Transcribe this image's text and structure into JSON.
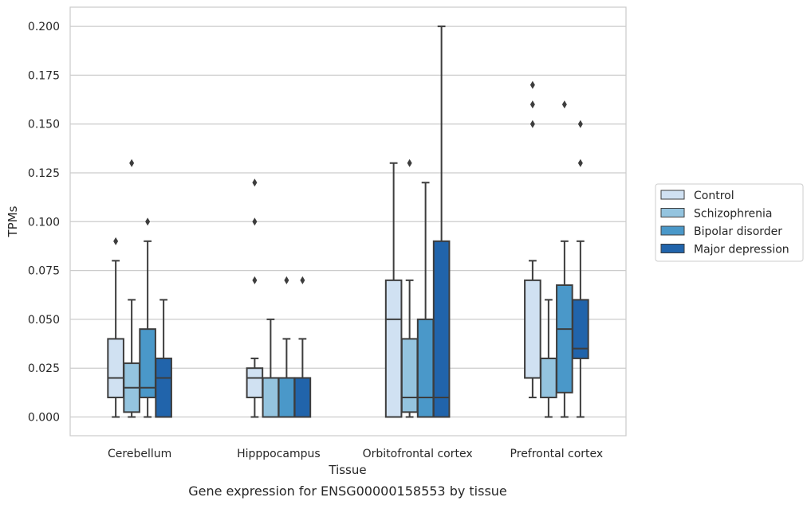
{
  "chart_data": {
    "type": "box",
    "xlabel": "Tissue",
    "ylabel": "TPMs",
    "caption": "Gene expression for ENSG00000158553 by tissue",
    "ylim": [
      -0.01,
      0.21
    ],
    "yticks": [
      "0.000",
      "0.025",
      "0.050",
      "0.075",
      "0.100",
      "0.125",
      "0.150",
      "0.175",
      "0.200"
    ],
    "grid": true,
    "legend_position": "right",
    "categories": [
      "Cerebellum",
      "Hipppocampus",
      "Orbitofrontal cortex",
      "Prefrontal cortex"
    ],
    "series": [
      {
        "name": "Control",
        "color": "#d0e1f2",
        "boxes": [
          {
            "whislo": 0.0,
            "q1": 0.01,
            "med": 0.02,
            "q3": 0.04,
            "whishi": 0.08,
            "fliers": [
              0.09
            ]
          },
          {
            "whislo": 0.0,
            "q1": 0.01,
            "med": 0.02,
            "q3": 0.025,
            "whishi": 0.03,
            "fliers": [
              0.07,
              0.1,
              0.12
            ]
          },
          {
            "whislo": 0.0,
            "q1": 0.0,
            "med": 0.05,
            "q3": 0.07,
            "whishi": 0.13,
            "fliers": []
          },
          {
            "whislo": 0.01,
            "q1": 0.02,
            "med": 0.02,
            "q3": 0.07,
            "whishi": 0.08,
            "fliers": [
              0.15,
              0.16,
              0.17
            ]
          }
        ]
      },
      {
        "name": "Schizophrenia",
        "color": "#94c4df",
        "boxes": [
          {
            "whislo": 0.0,
            "q1": 0.0025,
            "med": 0.015,
            "q3": 0.0275,
            "whishi": 0.06,
            "fliers": [
              0.13
            ]
          },
          {
            "whislo": 0.0,
            "q1": 0.0,
            "med": 0.02,
            "q3": 0.02,
            "whishi": 0.05,
            "fliers": []
          },
          {
            "whislo": 0.0,
            "q1": 0.0025,
            "med": 0.01,
            "q3": 0.04,
            "whishi": 0.07,
            "fliers": [
              0.13
            ]
          },
          {
            "whislo": 0.0,
            "q1": 0.01,
            "med": 0.03,
            "q3": 0.03,
            "whishi": 0.06,
            "fliers": []
          }
        ]
      },
      {
        "name": "Bipolar disorder",
        "color": "#4a98c9",
        "boxes": [
          {
            "whislo": 0.0,
            "q1": 0.01,
            "med": 0.015,
            "q3": 0.045,
            "whishi": 0.09,
            "fliers": [
              0.1
            ]
          },
          {
            "whislo": 0.0,
            "q1": 0.0,
            "med": 0.02,
            "q3": 0.02,
            "whishi": 0.04,
            "fliers": [
              0.07
            ]
          },
          {
            "whislo": 0.0,
            "q1": 0.0,
            "med": 0.01,
            "q3": 0.05,
            "whishi": 0.12,
            "fliers": []
          },
          {
            "whislo": 0.0,
            "q1": 0.0125,
            "med": 0.045,
            "q3": 0.0675,
            "whishi": 0.09,
            "fliers": [
              0.16
            ]
          }
        ]
      },
      {
        "name": "Major depression",
        "color": "#2164ab",
        "boxes": [
          {
            "whislo": 0.0,
            "q1": 0.0,
            "med": 0.02,
            "q3": 0.03,
            "whishi": 0.06,
            "fliers": []
          },
          {
            "whislo": 0.0,
            "q1": 0.0,
            "med": 0.02,
            "q3": 0.02,
            "whishi": 0.04,
            "fliers": [
              0.07
            ]
          },
          {
            "whislo": 0.0,
            "q1": 0.0,
            "med": 0.01,
            "q3": 0.09,
            "whishi": 0.2,
            "fliers": []
          },
          {
            "whislo": 0.0,
            "q1": 0.03,
            "med": 0.035,
            "q3": 0.06,
            "whishi": 0.09,
            "fliers": [
              0.13,
              0.15
            ]
          }
        ]
      }
    ]
  }
}
